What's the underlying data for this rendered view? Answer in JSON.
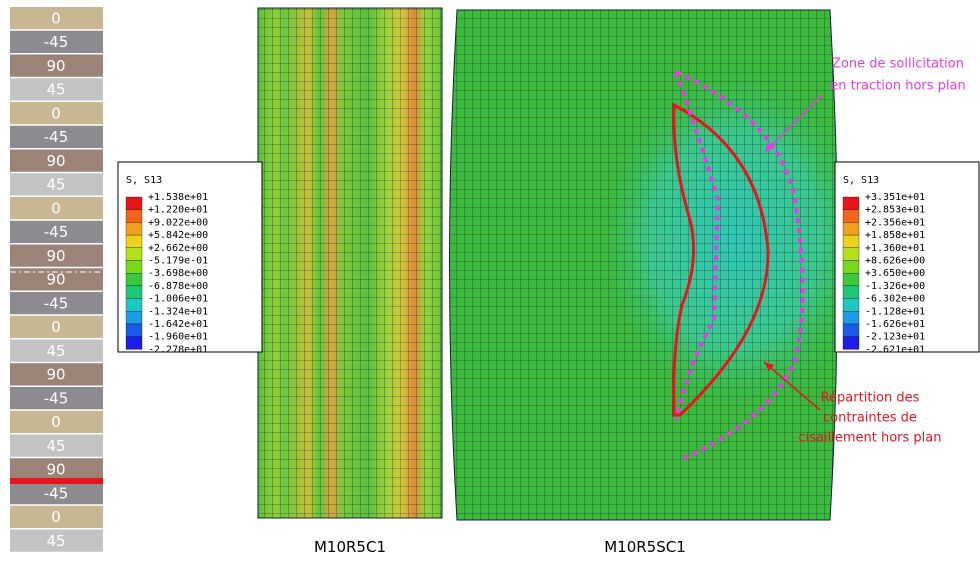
{
  "ply_stack": {
    "plies": [
      "0",
      "-45",
      "90",
      "45",
      "0",
      "-45",
      "90",
      "45",
      "0",
      "-45",
      "90",
      "90",
      "-45",
      "0",
      "45",
      "90",
      "-45",
      "0",
      "45",
      "90",
      "-45",
      "0",
      "45"
    ]
  },
  "legends": [
    {
      "title": "S, S13",
      "values": [
        "+1.538e+01",
        "+1.220e+01",
        "+9.022e+00",
        "+5.842e+00",
        "+2.662e+00",
        "-5.179e-01",
        "-3.698e+00",
        "-6.878e+00",
        "-1.006e+01",
        "-1.324e+01",
        "-1.642e+01",
        "-1.960e+01",
        "-2.278e+01"
      ]
    },
    {
      "title": "S, S13",
      "values": [
        "+3.351e+01",
        "+2.853e+01",
        "+2.356e+01",
        "+1.858e+01",
        "+1.360e+01",
        "+8.626e+00",
        "+3.650e+00",
        "-1.326e+00",
        "-6.302e+00",
        "-1.128e+01",
        "-1.626e+01",
        "-2.123e+01",
        "-2.621e+01"
      ]
    }
  ],
  "models": [
    {
      "label": "M10R5C1"
    },
    {
      "label": "M10R5SC1"
    }
  ],
  "annotations": [
    {
      "lines": [
        "Zone de sollicitation",
        "en traction hors plan"
      ]
    },
    {
      "lines": [
        "Répartition des",
        "contraintes de",
        "cisaillement hors plan"
      ]
    }
  ]
}
